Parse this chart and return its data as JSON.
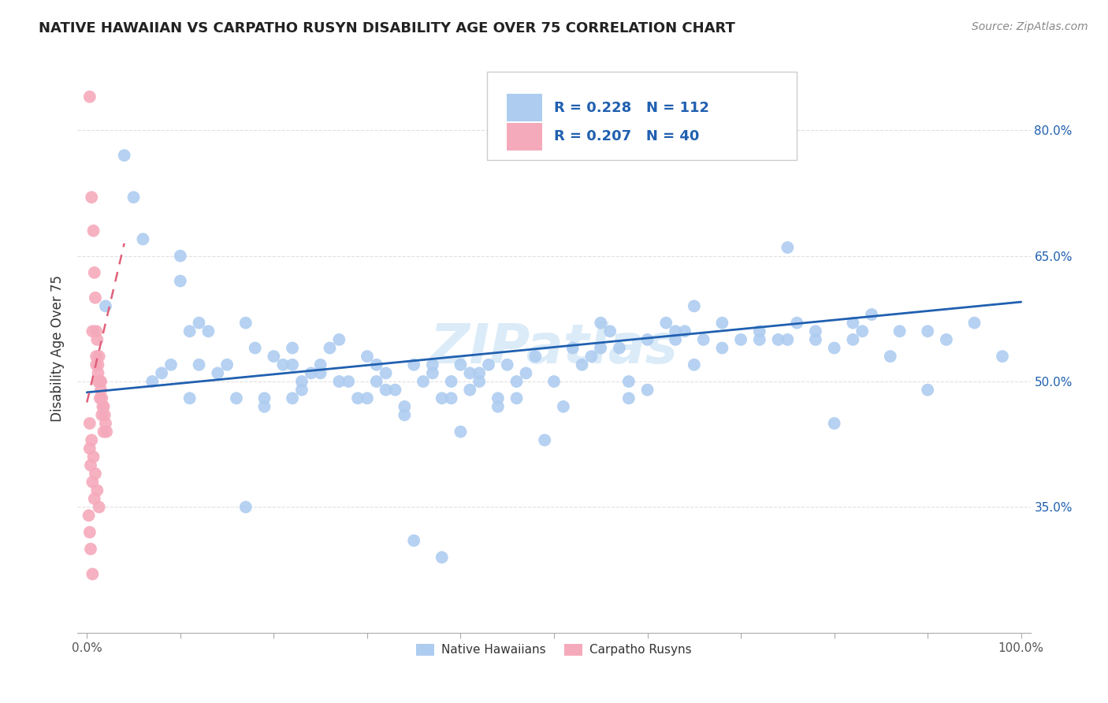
{
  "title": "NATIVE HAWAIIAN VS CARPATHO RUSYN DISABILITY AGE OVER 75 CORRELATION CHART",
  "source": "Source: ZipAtlas.com",
  "ylabel": "Disability Age Over 75",
  "xlim": [
    -0.01,
    1.01
  ],
  "ylim": [
    0.2,
    0.88
  ],
  "xtick_positions": [
    0.0,
    0.1,
    0.2,
    0.3,
    0.4,
    0.5,
    0.6,
    0.7,
    0.8,
    0.9,
    1.0
  ],
  "xtick_labels_show": {
    "0.0": "0.0%",
    "1.0": "100.0%"
  },
  "ytick_positions": [
    0.35,
    0.5,
    0.65,
    0.8
  ],
  "ytick_labels": [
    "35.0%",
    "50.0%",
    "65.0%",
    "80.0%"
  ],
  "blue_color": "#aeccf0",
  "pink_color": "#f5aabb",
  "blue_line_color": "#2060b0",
  "pink_line_color": "#e0607a",
  "legend_text_color": "#2060b0",
  "blue_R": "0.228",
  "blue_N": "112",
  "pink_R": "0.207",
  "pink_N": "40",
  "watermark": "ZIPatlas",
  "blue_line_x": [
    0.0,
    1.0
  ],
  "blue_line_y": [
    0.487,
    0.595
  ],
  "pink_line_x": [
    0.0,
    0.04
  ],
  "pink_line_y": [
    0.475,
    0.665
  ],
  "blue_scatter_x": [
    0.02,
    0.04,
    0.05,
    0.06,
    0.07,
    0.08,
    0.09,
    0.1,
    0.11,
    0.11,
    0.12,
    0.13,
    0.14,
    0.15,
    0.16,
    0.17,
    0.18,
    0.19,
    0.2,
    0.21,
    0.22,
    0.23,
    0.24,
    0.25,
    0.26,
    0.27,
    0.28,
    0.29,
    0.3,
    0.31,
    0.32,
    0.33,
    0.34,
    0.35,
    0.36,
    0.37,
    0.38,
    0.39,
    0.4,
    0.41,
    0.42,
    0.43,
    0.44,
    0.45,
    0.46,
    0.47,
    0.48,
    0.5,
    0.52,
    0.54,
    0.55,
    0.56,
    0.57,
    0.58,
    0.6,
    0.62,
    0.63,
    0.64,
    0.65,
    0.66,
    0.68,
    0.7,
    0.72,
    0.74,
    0.75,
    0.76,
    0.78,
    0.8,
    0.82,
    0.83,
    0.86,
    0.9,
    0.1,
    0.12,
    0.17,
    0.19,
    0.22,
    0.22,
    0.23,
    0.25,
    0.27,
    0.3,
    0.31,
    0.32,
    0.34,
    0.37,
    0.39,
    0.4,
    0.41,
    0.42,
    0.44,
    0.46,
    0.49,
    0.51,
    0.53,
    0.55,
    0.58,
    0.6,
    0.63,
    0.65,
    0.68,
    0.72,
    0.75,
    0.78,
    0.8,
    0.82,
    0.84,
    0.87,
    0.9,
    0.92,
    0.95,
    0.98,
    0.35,
    0.38
  ],
  "blue_scatter_y": [
    0.59,
    0.77,
    0.72,
    0.67,
    0.5,
    0.51,
    0.52,
    0.65,
    0.56,
    0.48,
    0.52,
    0.56,
    0.51,
    0.52,
    0.48,
    0.57,
    0.54,
    0.48,
    0.53,
    0.52,
    0.54,
    0.5,
    0.51,
    0.52,
    0.54,
    0.55,
    0.5,
    0.48,
    0.53,
    0.52,
    0.51,
    0.49,
    0.47,
    0.52,
    0.5,
    0.51,
    0.48,
    0.48,
    0.52,
    0.51,
    0.5,
    0.52,
    0.48,
    0.52,
    0.5,
    0.51,
    0.53,
    0.5,
    0.54,
    0.53,
    0.57,
    0.56,
    0.54,
    0.5,
    0.55,
    0.57,
    0.55,
    0.56,
    0.59,
    0.55,
    0.57,
    0.55,
    0.56,
    0.55,
    0.66,
    0.57,
    0.55,
    0.54,
    0.55,
    0.56,
    0.53,
    0.49,
    0.62,
    0.57,
    0.35,
    0.47,
    0.48,
    0.52,
    0.49,
    0.51,
    0.5,
    0.48,
    0.5,
    0.49,
    0.46,
    0.52,
    0.5,
    0.44,
    0.49,
    0.51,
    0.47,
    0.48,
    0.43,
    0.47,
    0.52,
    0.54,
    0.48,
    0.49,
    0.56,
    0.52,
    0.54,
    0.55,
    0.55,
    0.56,
    0.45,
    0.57,
    0.58,
    0.56,
    0.56,
    0.55,
    0.57,
    0.53,
    0.31,
    0.29
  ],
  "pink_scatter_x": [
    0.003,
    0.005,
    0.007,
    0.008,
    0.009,
    0.01,
    0.01,
    0.011,
    0.012,
    0.012,
    0.013,
    0.014,
    0.015,
    0.015,
    0.016,
    0.017,
    0.018,
    0.019,
    0.02,
    0.021,
    0.006,
    0.01,
    0.012,
    0.014,
    0.016,
    0.018,
    0.003,
    0.005,
    0.007,
    0.009,
    0.011,
    0.013,
    0.003,
    0.004,
    0.006,
    0.008,
    0.002,
    0.003,
    0.004,
    0.006
  ],
  "pink_scatter_y": [
    0.84,
    0.72,
    0.68,
    0.63,
    0.6,
    0.56,
    0.53,
    0.55,
    0.52,
    0.51,
    0.53,
    0.5,
    0.5,
    0.49,
    0.48,
    0.47,
    0.47,
    0.46,
    0.45,
    0.44,
    0.56,
    0.52,
    0.5,
    0.48,
    0.46,
    0.44,
    0.45,
    0.43,
    0.41,
    0.39,
    0.37,
    0.35,
    0.42,
    0.4,
    0.38,
    0.36,
    0.34,
    0.32,
    0.3,
    0.27
  ]
}
